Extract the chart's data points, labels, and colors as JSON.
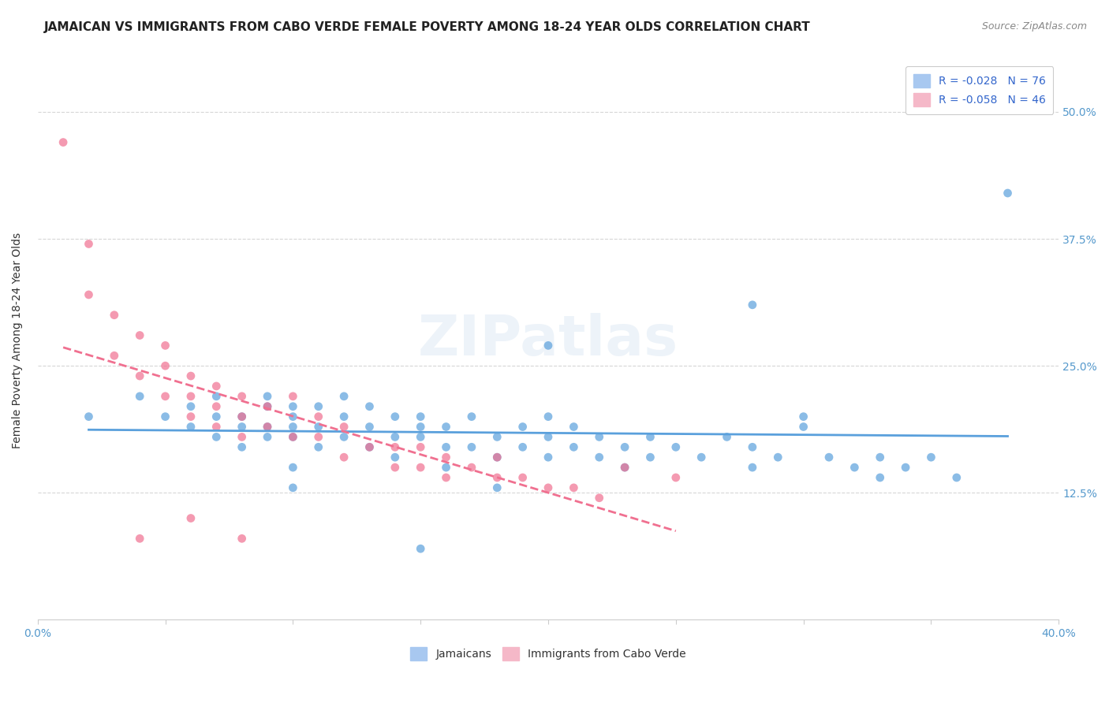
{
  "title": "JAMAICAN VS IMMIGRANTS FROM CABO VERDE FEMALE POVERTY AMONG 18-24 YEAR OLDS CORRELATION CHART",
  "source_text": "Source: ZipAtlas.com",
  "ylabel": "Female Poverty Among 18-24 Year Olds",
  "xlim": [
    0.0,
    0.4
  ],
  "ylim": [
    0.0,
    0.55
  ],
  "xtick_positions": [
    0.0,
    0.05,
    0.1,
    0.15,
    0.2,
    0.25,
    0.3,
    0.35,
    0.4
  ],
  "xticklabels": [
    "0.0%",
    "",
    "",
    "",
    "",
    "",
    "",
    "",
    "40.0%"
  ],
  "ytick_positions": [
    0.125,
    0.25,
    0.375,
    0.5
  ],
  "ytick_labels": [
    "12.5%",
    "25.0%",
    "37.5%",
    "50.0%"
  ],
  "watermark": "ZIPatlas",
  "top_legend": [
    {
      "label": "R = -0.028   N = 76",
      "patch_color": "#a8c8f0"
    },
    {
      "label": "R = -0.058   N = 46",
      "patch_color": "#f5b8c8"
    }
  ],
  "bottom_legend": [
    "Jamaicans",
    "Immigrants from Cabo Verde"
  ],
  "bottom_legend_colors": [
    "#a8c8f0",
    "#f5b8c8"
  ],
  "jamaican_color": "#5aa0dc",
  "caboverde_color": "#f07090",
  "jamaicans_x": [
    0.02,
    0.04,
    0.05,
    0.06,
    0.06,
    0.07,
    0.07,
    0.07,
    0.08,
    0.08,
    0.08,
    0.09,
    0.09,
    0.09,
    0.09,
    0.1,
    0.1,
    0.1,
    0.1,
    0.1,
    0.11,
    0.11,
    0.11,
    0.12,
    0.12,
    0.12,
    0.13,
    0.13,
    0.13,
    0.14,
    0.14,
    0.14,
    0.15,
    0.15,
    0.15,
    0.16,
    0.16,
    0.16,
    0.17,
    0.17,
    0.18,
    0.18,
    0.19,
    0.19,
    0.2,
    0.2,
    0.2,
    0.21,
    0.21,
    0.22,
    0.22,
    0.23,
    0.23,
    0.24,
    0.24,
    0.25,
    0.26,
    0.27,
    0.28,
    0.28,
    0.29,
    0.3,
    0.31,
    0.32,
    0.33,
    0.33,
    0.34,
    0.35,
    0.36,
    0.28,
    0.1,
    0.38,
    0.15,
    0.2,
    0.3,
    0.18
  ],
  "jamaicans_y": [
    0.2,
    0.22,
    0.2,
    0.21,
    0.19,
    0.2,
    0.22,
    0.18,
    0.19,
    0.2,
    0.17,
    0.19,
    0.21,
    0.18,
    0.22,
    0.2,
    0.18,
    0.19,
    0.21,
    0.15,
    0.17,
    0.21,
    0.19,
    0.2,
    0.18,
    0.22,
    0.19,
    0.17,
    0.21,
    0.18,
    0.2,
    0.16,
    0.19,
    0.2,
    0.18,
    0.17,
    0.19,
    0.15,
    0.2,
    0.17,
    0.18,
    0.16,
    0.19,
    0.17,
    0.2,
    0.18,
    0.16,
    0.17,
    0.19,
    0.18,
    0.16,
    0.15,
    0.17,
    0.16,
    0.18,
    0.17,
    0.16,
    0.18,
    0.17,
    0.15,
    0.16,
    0.19,
    0.16,
    0.15,
    0.16,
    0.14,
    0.15,
    0.16,
    0.14,
    0.31,
    0.13,
    0.42,
    0.07,
    0.27,
    0.2,
    0.13
  ],
  "caboverde_x": [
    0.01,
    0.02,
    0.02,
    0.03,
    0.03,
    0.04,
    0.04,
    0.05,
    0.05,
    0.05,
    0.06,
    0.06,
    0.06,
    0.07,
    0.07,
    0.07,
    0.08,
    0.08,
    0.08,
    0.09,
    0.09,
    0.1,
    0.1,
    0.11,
    0.11,
    0.12,
    0.12,
    0.13,
    0.14,
    0.14,
    0.15,
    0.15,
    0.16,
    0.16,
    0.17,
    0.18,
    0.18,
    0.19,
    0.2,
    0.21,
    0.22,
    0.23,
    0.25,
    0.06,
    0.08,
    0.04
  ],
  "caboverde_y": [
    0.47,
    0.37,
    0.32,
    0.3,
    0.26,
    0.28,
    0.24,
    0.22,
    0.25,
    0.27,
    0.2,
    0.22,
    0.24,
    0.19,
    0.21,
    0.23,
    0.18,
    0.2,
    0.22,
    0.19,
    0.21,
    0.18,
    0.22,
    0.18,
    0.2,
    0.16,
    0.19,
    0.17,
    0.15,
    0.17,
    0.15,
    0.17,
    0.16,
    0.14,
    0.15,
    0.14,
    0.16,
    0.14,
    0.13,
    0.13,
    0.12,
    0.15,
    0.14,
    0.1,
    0.08,
    0.08
  ],
  "background_color": "#ffffff",
  "grid_color": "#cccccc",
  "title_fontsize": 11,
  "axis_label_fontsize": 10,
  "tick_label_fontsize": 10,
  "tick_label_color": "#5599cc",
  "legend_label_color": "#3366cc"
}
